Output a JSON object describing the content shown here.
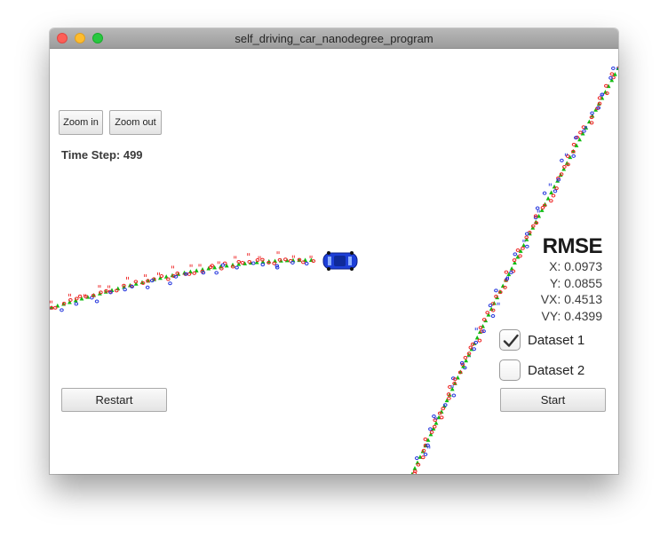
{
  "window": {
    "title": "self_driving_car_nanodegree_program"
  },
  "controls": {
    "zoom_in_label": "Zoom in",
    "zoom_out_label": "Zoom out",
    "restart_label": "Restart",
    "start_label": "Start"
  },
  "status": {
    "time_step_label": "Time Step:",
    "time_step_value": "499"
  },
  "rmse": {
    "title": "RMSE",
    "x": "X: 0.0973",
    "y": "Y: 0.0855",
    "vx": "VX: 0.4513",
    "vy": "VY: 0.4399"
  },
  "datasets": [
    {
      "label": "Dataset 1",
      "checked": true
    },
    {
      "label": "Dataset 2",
      "checked": false
    }
  ],
  "colors": {
    "estimate_marker": "#11bb11",
    "lidar_marker": "#ee2222",
    "radar_marker": "#2233dd",
    "car_body": "#1d3fd8"
  }
}
